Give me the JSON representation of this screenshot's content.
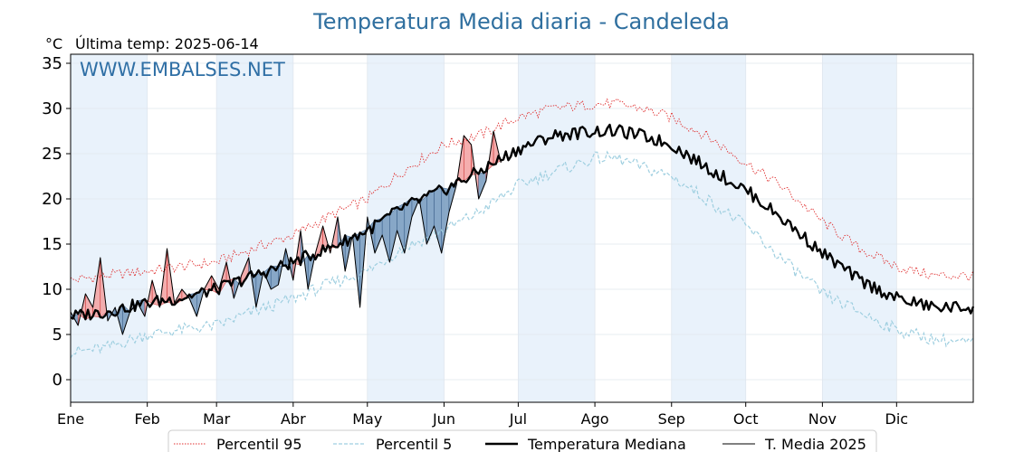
{
  "chart_data": {
    "type": "line",
    "title": "Temperatura Media diaria - Candeleda",
    "unit_label": "°C",
    "subtitle": "Última temp: 2025-06-14",
    "watermark": "WWW.EMBALSES.NET",
    "ylim": [
      -2.5,
      36
    ],
    "yticks": [
      0,
      5,
      10,
      15,
      20,
      25,
      30,
      35
    ],
    "xlim": [
      1,
      366
    ],
    "months": [
      "Ene",
      "Feb",
      "Mar",
      "Abr",
      "May",
      "Jun",
      "Jul",
      "Ago",
      "Sep",
      "Oct",
      "Nov",
      "Dic"
    ],
    "month_start_days": [
      1,
      32,
      60,
      91,
      121,
      152,
      182,
      213,
      244,
      274,
      305,
      335
    ],
    "shaded_months": [
      "Ene",
      "Mar",
      "May",
      "Jul",
      "Sep",
      "Nov"
    ],
    "grid": true,
    "legend_placement": "bottom-center",
    "colors": {
      "p95": "#e03030",
      "p5": "#9fcfe0",
      "median": "#000000",
      "current": "#000000",
      "above_fill": "#f4a6a6",
      "above_edge": "#cc3333",
      "below_fill": "#7d9fc2",
      "below_edge": "#3a5f8a",
      "month_shade": "#e9f2fb"
    },
    "series": [
      {
        "name": "Percentil 95",
        "style": "dotted-red",
        "points": [
          [
            1,
            11
          ],
          [
            15,
            11.5
          ],
          [
            32,
            12
          ],
          [
            45,
            12.5
          ],
          [
            60,
            13
          ],
          [
            75,
            14.5
          ],
          [
            91,
            16
          ],
          [
            105,
            18
          ],
          [
            121,
            20
          ],
          [
            135,
            23
          ],
          [
            152,
            26
          ],
          [
            166,
            27
          ],
          [
            182,
            29
          ],
          [
            196,
            30
          ],
          [
            213,
            30.5
          ],
          [
            222,
            30.5
          ],
          [
            232,
            30
          ],
          [
            244,
            29
          ],
          [
            258,
            27
          ],
          [
            274,
            24
          ],
          [
            288,
            21.5
          ],
          [
            305,
            17.5
          ],
          [
            320,
            14.5
          ],
          [
            335,
            12.5
          ],
          [
            350,
            11.5
          ],
          [
            366,
            11.5
          ]
        ]
      },
      {
        "name": "Percentil 5",
        "style": "dashed-lightblue",
        "points": [
          [
            1,
            3
          ],
          [
            15,
            3.5
          ],
          [
            32,
            5
          ],
          [
            45,
            5.5
          ],
          [
            60,
            6
          ],
          [
            75,
            7.5
          ],
          [
            91,
            9
          ],
          [
            105,
            10.5
          ],
          [
            121,
            12
          ],
          [
            135,
            14.5
          ],
          [
            152,
            16.5
          ],
          [
            166,
            18.5
          ],
          [
            182,
            21.5
          ],
          [
            196,
            23
          ],
          [
            213,
            24.5
          ],
          [
            222,
            24.5
          ],
          [
            232,
            23.5
          ],
          [
            244,
            22.5
          ],
          [
            258,
            20
          ],
          [
            274,
            17
          ],
          [
            288,
            13.5
          ],
          [
            305,
            9.5
          ],
          [
            320,
            7.5
          ],
          [
            335,
            5.5
          ],
          [
            350,
            4.5
          ],
          [
            366,
            4
          ]
        ]
      },
      {
        "name": "Temperatura Mediana",
        "style": "thick-black",
        "points": [
          [
            1,
            7
          ],
          [
            15,
            7.5
          ],
          [
            32,
            8.5
          ],
          [
            45,
            9
          ],
          [
            60,
            10
          ],
          [
            75,
            11.5
          ],
          [
            91,
            13
          ],
          [
            105,
            14.5
          ],
          [
            121,
            16.5
          ],
          [
            135,
            19
          ],
          [
            152,
            21
          ],
          [
            166,
            23
          ],
          [
            182,
            25.5
          ],
          [
            196,
            27
          ],
          [
            213,
            27.5
          ],
          [
            222,
            27.5
          ],
          [
            232,
            27
          ],
          [
            244,
            26
          ],
          [
            258,
            23.5
          ],
          [
            274,
            21
          ],
          [
            288,
            18
          ],
          [
            305,
            14
          ],
          [
            320,
            11
          ],
          [
            335,
            9
          ],
          [
            350,
            8
          ],
          [
            366,
            8
          ]
        ]
      },
      {
        "name": "T. Media 2025",
        "style": "thin-black",
        "points": [
          [
            1,
            7.5
          ],
          [
            4,
            6
          ],
          [
            7,
            9.5
          ],
          [
            10,
            8
          ],
          [
            13,
            13.5
          ],
          [
            16,
            6.5
          ],
          [
            19,
            8
          ],
          [
            22,
            5
          ],
          [
            25,
            7.5
          ],
          [
            28,
            8.5
          ],
          [
            31,
            7
          ],
          [
            34,
            11
          ],
          [
            37,
            8
          ],
          [
            40,
            14.5
          ],
          [
            43,
            8.5
          ],
          [
            46,
            10
          ],
          [
            49,
            9
          ],
          [
            52,
            7
          ],
          [
            55,
            10
          ],
          [
            58,
            11.5
          ],
          [
            61,
            10
          ],
          [
            64,
            13
          ],
          [
            67,
            9
          ],
          [
            70,
            11.5
          ],
          [
            73,
            13.5
          ],
          [
            76,
            8
          ],
          [
            79,
            12
          ],
          [
            82,
            10
          ],
          [
            85,
            10.5
          ],
          [
            88,
            14.5
          ],
          [
            91,
            11
          ],
          [
            94,
            16.5
          ],
          [
            97,
            10
          ],
          [
            100,
            14
          ],
          [
            103,
            17
          ],
          [
            106,
            14
          ],
          [
            109,
            18
          ],
          [
            112,
            12
          ],
          [
            115,
            16
          ],
          [
            118,
            8
          ],
          [
            121,
            18
          ],
          [
            124,
            14
          ],
          [
            127,
            16
          ],
          [
            130,
            13
          ],
          [
            133,
            16.5
          ],
          [
            136,
            14
          ],
          [
            139,
            18
          ],
          [
            142,
            20
          ],
          [
            145,
            15
          ],
          [
            148,
            17
          ],
          [
            151,
            14
          ],
          [
            154,
            18.5
          ],
          [
            157,
            21.5
          ],
          [
            160,
            27
          ],
          [
            163,
            26
          ],
          [
            166,
            20
          ],
          [
            169,
            22
          ],
          [
            172,
            27.5
          ],
          [
            175,
            24
          ]
        ]
      }
    ],
    "legend": [
      {
        "label": "Percentil 95",
        "style": "dotted-red"
      },
      {
        "label": "Percentil 5",
        "style": "dashed-lightblue"
      },
      {
        "label": "Temperatura Mediana",
        "style": "thick-black"
      },
      {
        "label": "T. Media 2025",
        "style": "thin-black"
      }
    ]
  }
}
